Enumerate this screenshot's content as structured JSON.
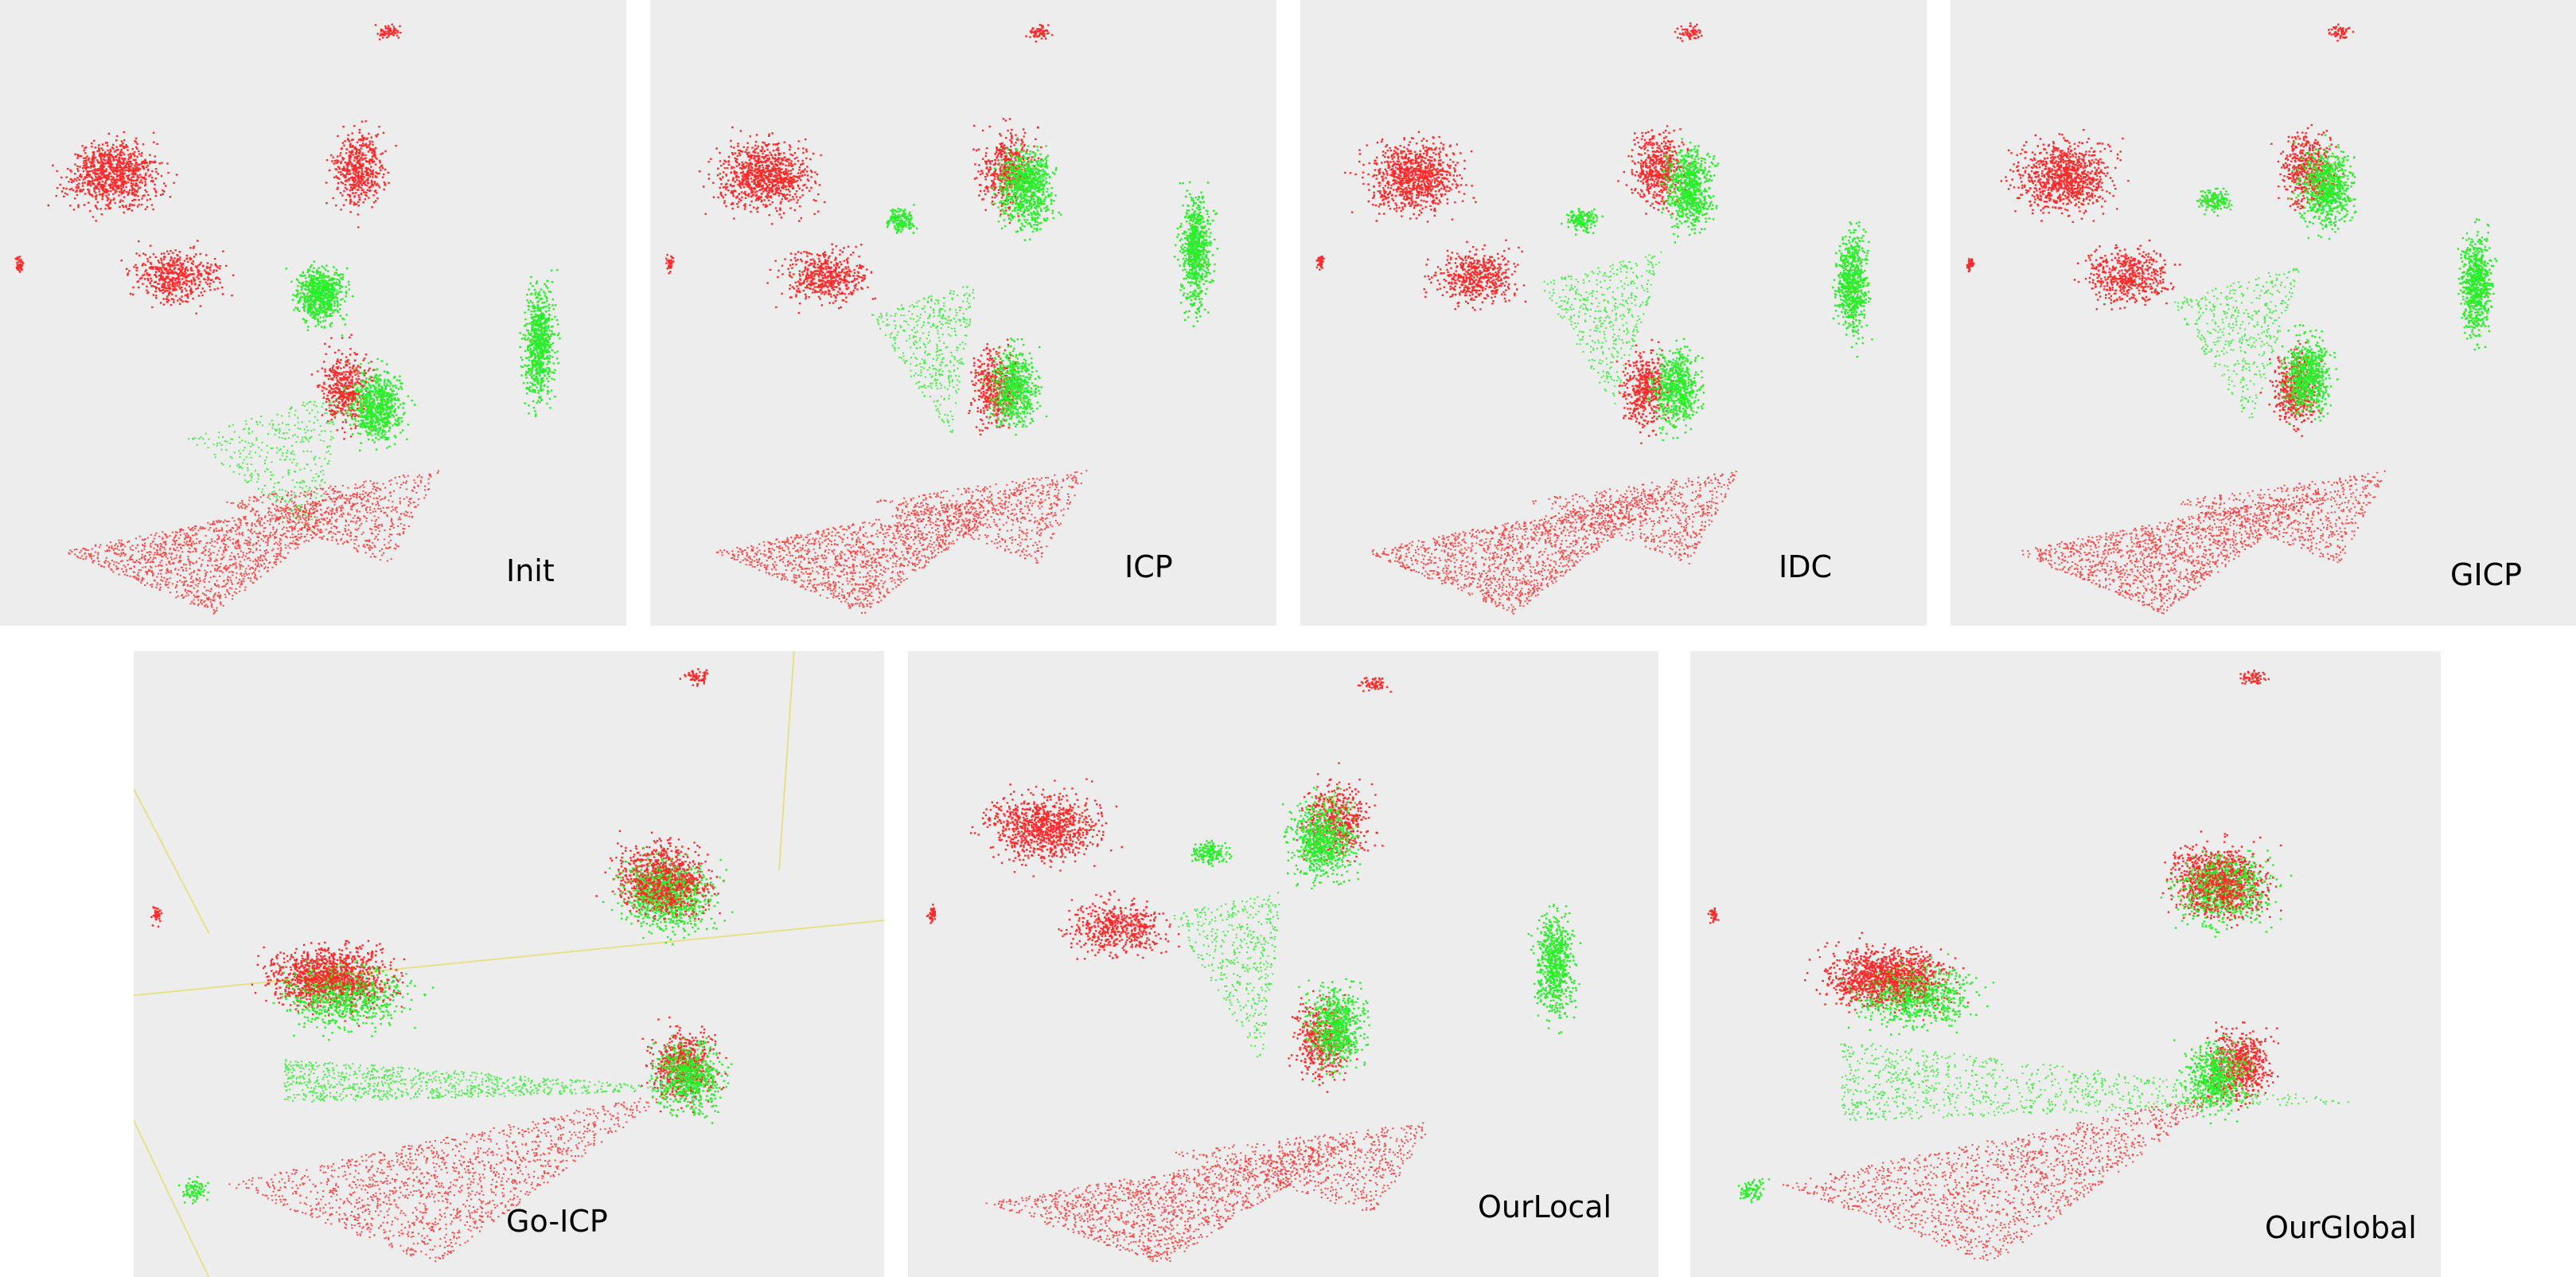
{
  "colors": {
    "panel_background": "#ededed",
    "source_cloud": "#ff2a2a",
    "target_cloud": "#2aee2a",
    "grid_line": "#e6e08a"
  },
  "panels": [
    {
      "id": "init",
      "label": "Init"
    },
    {
      "id": "icp",
      "label": "ICP"
    },
    {
      "id": "idc",
      "label": "IDC"
    },
    {
      "id": "gicp",
      "label": "GICP"
    },
    {
      "id": "go-icp",
      "label": "Go-ICP"
    },
    {
      "id": "ourlocal",
      "label": "OurLocal"
    },
    {
      "id": "ourglobal",
      "label": "OurGlobal"
    }
  ]
}
